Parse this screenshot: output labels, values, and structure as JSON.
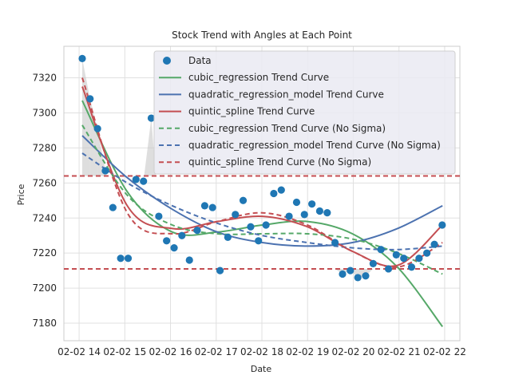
{
  "chart_data": {
    "type": "scatter",
    "title": "Stock Trend with Angles at Each Point",
    "xlabel": "Date",
    "ylabel": "Price",
    "xlim": [
      0,
      26
    ],
    "ylim": [
      7170,
      7338
    ],
    "grid": true,
    "legend_position": "top-right",
    "x_ticks": [
      {
        "x": 1,
        "label": "02-02 14"
      },
      {
        "x": 4,
        "label": "02-02 15"
      },
      {
        "x": 7,
        "label": "02-02 16"
      },
      {
        "x": 10,
        "label": "02-02 17"
      },
      {
        "x": 13,
        "label": "02-02 18"
      },
      {
        "x": 16,
        "label": "02-02 19"
      },
      {
        "x": 19,
        "label": "02-02 20"
      },
      {
        "x": 22,
        "label": "02-02 21"
      },
      {
        "x": 25,
        "label": "02-02 22"
      }
    ],
    "y_ticks": [
      7180,
      7200,
      7220,
      7240,
      7260,
      7280,
      7300,
      7320
    ],
    "hlines": [
      {
        "y": 7264,
        "color": "#c44e52"
      },
      {
        "y": 7211,
        "color": "#c44e52"
      }
    ],
    "scatter": {
      "name": "Data",
      "color": "#1f77b4",
      "points": [
        {
          "x": 0.0,
          "y": 7331
        },
        {
          "x": 0.26,
          "y": 7308
        },
        {
          "x": 0.51,
          "y": 7291
        },
        {
          "x": 0.77,
          "y": 7267
        },
        {
          "x": 1.02,
          "y": 7246
        },
        {
          "x": 1.28,
          "y": 7217
        },
        {
          "x": 1.53,
          "y": 7217
        },
        {
          "x": 1.79,
          "y": 7262
        },
        {
          "x": 2.04,
          "y": 7261
        },
        {
          "x": 2.3,
          "y": 7297
        },
        {
          "x": 2.55,
          "y": 7241
        },
        {
          "x": 2.81,
          "y": 7227
        },
        {
          "x": 3.06,
          "y": 7223
        },
        {
          "x": 3.32,
          "y": 7230
        },
        {
          "x": 3.57,
          "y": 7216
        },
        {
          "x": 3.83,
          "y": 7233
        },
        {
          "x": 4.08,
          "y": 7247
        },
        {
          "x": 4.34,
          "y": 7246
        },
        {
          "x": 4.59,
          "y": 7210
        },
        {
          "x": 4.85,
          "y": 7229
        },
        {
          "x": 5.1,
          "y": 7242
        },
        {
          "x": 5.36,
          "y": 7250
        },
        {
          "x": 5.61,
          "y": 7235
        },
        {
          "x": 5.87,
          "y": 7227
        },
        {
          "x": 6.12,
          "y": 7236
        },
        {
          "x": 6.38,
          "y": 7254
        },
        {
          "x": 6.63,
          "y": 7256
        },
        {
          "x": 6.89,
          "y": 7241
        },
        {
          "x": 7.14,
          "y": 7249
        },
        {
          "x": 7.4,
          "y": 7242
        },
        {
          "x": 7.65,
          "y": 7248
        },
        {
          "x": 7.91,
          "y": 7244
        },
        {
          "x": 8.16,
          "y": 7243
        },
        {
          "x": 8.42,
          "y": 7226
        },
        {
          "x": 8.67,
          "y": 7208
        },
        {
          "x": 8.93,
          "y": 7210
        },
        {
          "x": 9.18,
          "y": 7206
        },
        {
          "x": 9.44,
          "y": 7207
        },
        {
          "x": 9.69,
          "y": 7214
        },
        {
          "x": 9.95,
          "y": 7222
        },
        {
          "x": 10.2,
          "y": 7211
        },
        {
          "x": 10.46,
          "y": 7219
        },
        {
          "x": 10.71,
          "y": 7217
        },
        {
          "x": 10.97,
          "y": 7212
        },
        {
          "x": 11.22,
          "y": 7217
        },
        {
          "x": 11.48,
          "y": 7220
        },
        {
          "x": 11.73,
          "y": 7225
        },
        {
          "x": 11.99,
          "y": 7236
        }
      ]
    },
    "series": [
      {
        "name": "cubic_regression Trend Curve",
        "color": "#55a868",
        "dash": "solid",
        "x": [
          0,
          1.5,
          3,
          4.5,
          6,
          7.5,
          9,
          10.5,
          12
        ],
        "y": [
          7307,
          7255,
          7232,
          7232,
          7236,
          7238,
          7231,
          7212,
          7178
        ]
      },
      {
        "name": "quadratic_regression_model Trend Curve",
        "color": "#4c72b0",
        "dash": "solid",
        "x": [
          0,
          1.5,
          3,
          4.5,
          6,
          7.5,
          9,
          10.5,
          12
        ],
        "y": [
          7287,
          7263,
          7245,
          7232,
          7226,
          7224,
          7226,
          7234,
          7247
        ]
      },
      {
        "name": "quintic_spline Trend Curve",
        "color": "#c44e52",
        "dash": "solid",
        "x": [
          0,
          1.5,
          3,
          4.5,
          6,
          7.5,
          9,
          10.5,
          12
        ],
        "y": [
          7315,
          7247,
          7234,
          7238,
          7241,
          7235,
          7221,
          7213,
          7236
        ]
      },
      {
        "name": "cubic_regression Trend Curve (No Sigma)",
        "color": "#55a868",
        "dash": "dashed",
        "x": [
          0,
          1.5,
          3,
          4.5,
          6,
          7.5,
          9,
          10.5,
          12
        ],
        "y": [
          7293,
          7253,
          7236,
          7231,
          7231,
          7231,
          7228,
          7220,
          7208
        ]
      },
      {
        "name": "quadratic_regression_model Trend Curve (No Sigma)",
        "color": "#4c72b0",
        "dash": "dashed",
        "x": [
          0,
          1.5,
          3,
          4.5,
          6,
          7.5,
          9,
          10.5,
          12
        ],
        "y": [
          7277,
          7260,
          7247,
          7237,
          7230,
          7226,
          7223,
          7222,
          7224
        ]
      },
      {
        "name": "quintic_spline Trend Curve (No Sigma)",
        "color": "#c44e52",
        "dash": "dashed",
        "x": [
          0,
          1.5,
          3,
          4.5,
          6,
          7.5,
          9,
          10.5,
          12
        ],
        "y": [
          7320,
          7243,
          7231,
          7238,
          7243,
          7236,
          7221,
          7212,
          7226
        ]
      }
    ]
  }
}
